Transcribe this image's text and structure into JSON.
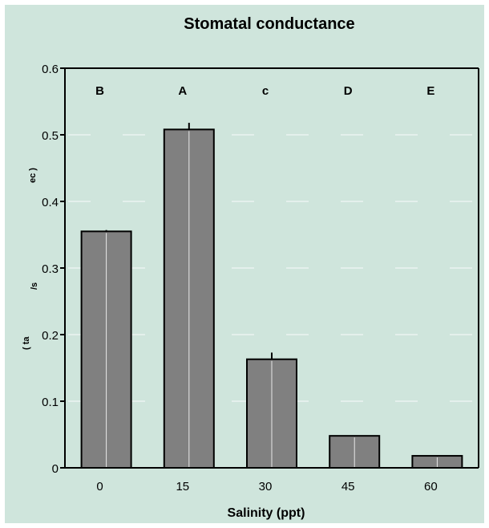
{
  "chart_data": {
    "type": "bar",
    "title": "Stomatal conductance",
    "xlabel": "Salinity (ppt)",
    "ylabel_fragments": [
      "( ta",
      "/s",
      "ec )"
    ],
    "categories": [
      "0",
      "15",
      "30",
      "45",
      "60"
    ],
    "values": [
      0.355,
      0.508,
      0.163,
      0.048,
      0.018
    ],
    "errors": [
      0.002,
      0.01,
      0.01,
      0.0,
      0.0
    ],
    "group_letters": [
      "B",
      "A",
      "c",
      "D",
      "E"
    ],
    "ylim": [
      0,
      0.6
    ],
    "yticks": [
      0,
      0.1,
      0.2,
      0.3,
      0.4,
      0.5,
      0.6
    ],
    "ytick_labels": [
      "0",
      "0.1",
      "0.2",
      "0.3",
      "0.4",
      "0.5",
      "0.6"
    ],
    "grid": false,
    "colors": {
      "background": "#cfe5dc",
      "bar": "#808080",
      "bar_edge": "#000000",
      "bar_highlight": "#e8e8e8"
    }
  }
}
